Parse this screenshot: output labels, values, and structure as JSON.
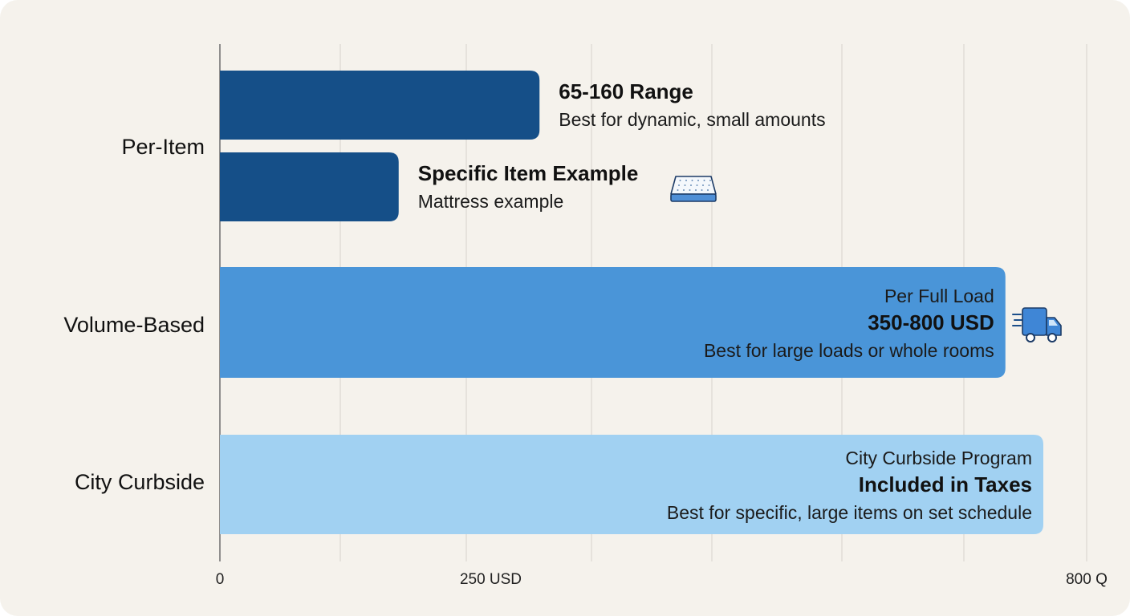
{
  "chart_data": {
    "type": "bar",
    "orientation": "horizontal",
    "xlim": [
      0,
      800
    ],
    "grid": true,
    "x_ticks": [
      {
        "value": 0,
        "label": "0"
      },
      {
        "value": 250,
        "label": "250 USD"
      },
      {
        "value": 800,
        "label": "800 Q"
      }
    ],
    "categories": [
      "Per-Item",
      "Volume-Based",
      "City Curbside"
    ],
    "bars": [
      {
        "category": "Per-Item",
        "value": 295,
        "color": "#154f88",
        "label_position": "outside",
        "lines": [
          {
            "text": "65-160 Range",
            "bold": true
          },
          {
            "text": "Best for dynamic, small amounts",
            "bold": false
          }
        ]
      },
      {
        "category": "Per-Item",
        "value": 165,
        "color": "#154f88",
        "label_position": "outside",
        "icon": "mattress-icon",
        "lines": [
          {
            "text": "Specific Item Example",
            "bold": true
          },
          {
            "text": "Mattress example",
            "bold": false
          }
        ]
      },
      {
        "category": "Volume-Based",
        "value": 725,
        "color": "#4a95d8",
        "label_position": "inside",
        "icon": "delivery-truck-icon",
        "lines": [
          {
            "text": "Per Full Load",
            "bold": false
          },
          {
            "text": "350-800 USD",
            "bold": true
          },
          {
            "text": "Best for large loads or whole rooms",
            "bold": false
          }
        ]
      },
      {
        "category": "City Curbside",
        "value": 760,
        "color": "#a1d1f2",
        "label_position": "inside",
        "lines": [
          {
            "text": "City Curbside Program",
            "bold": false
          },
          {
            "text": "Included in Taxes",
            "bold": true
          },
          {
            "text": "Best for specific, large items on set schedule",
            "bold": false
          }
        ]
      }
    ]
  }
}
